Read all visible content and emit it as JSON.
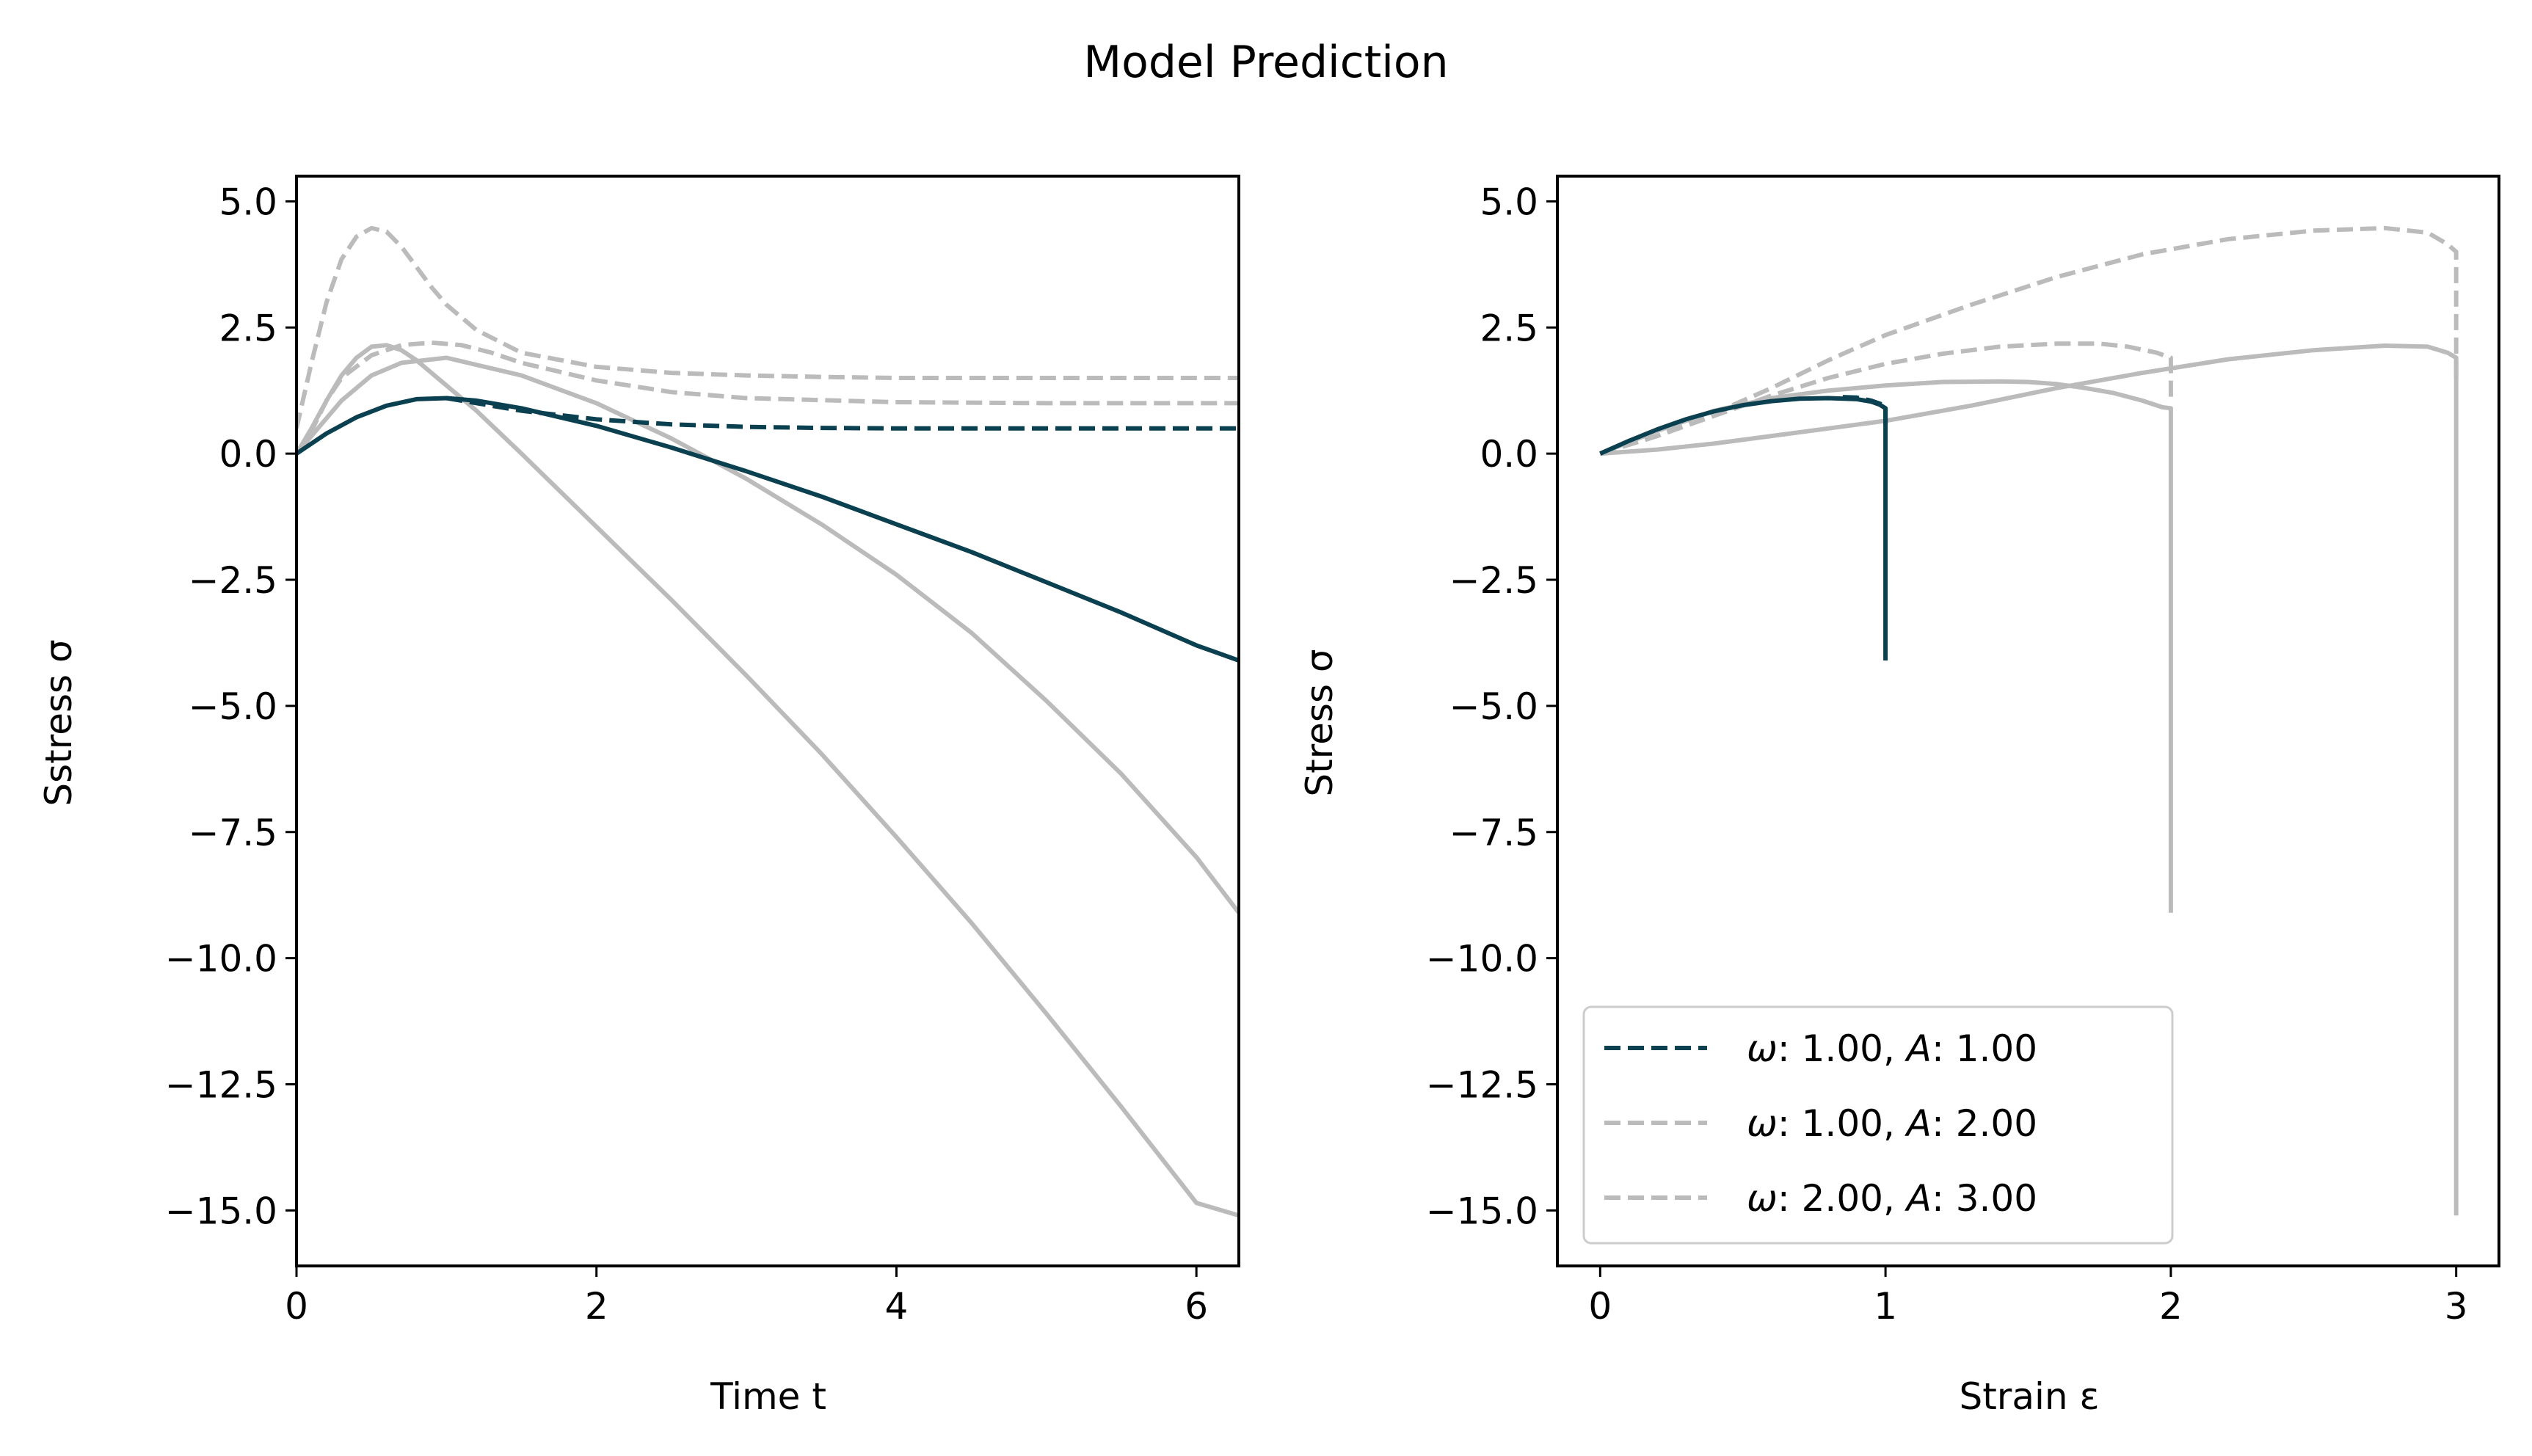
{
  "figure": {
    "title": "Model Prediction"
  },
  "colors": {
    "primary": "#0a4050",
    "secondary": "#bbbbbb",
    "legend_border": "#cccccc"
  },
  "chart_data": [
    {
      "type": "line",
      "xlabel": "Time t",
      "ylabel": "Sstress σ",
      "xlim": [
        0,
        6.283
      ],
      "ylim": [
        -16.1,
        5.5
      ],
      "xticks": [
        0,
        2,
        4,
        6
      ],
      "xtick_labels": [
        "0",
        "2",
        "4",
        "6"
      ],
      "yticks": [
        5.0,
        2.5,
        0.0,
        -2.5,
        -5.0,
        -7.5,
        -10.0,
        -12.5,
        -15.0
      ],
      "ytick_labels": [
        "5.0",
        "2.5",
        "0.0",
        "−2.5",
        "−5.0",
        "−7.5",
        "−10.0",
        "−12.5",
        "−15.0"
      ],
      "grid": false,
      "series": [
        {
          "style": "solid",
          "color": "secondary",
          "x": [
            0,
            0.1,
            0.3,
            0.5,
            0.7,
            1.0,
            1.5,
            2.0,
            2.5,
            3.0,
            3.5,
            4.0,
            4.5,
            5.0,
            5.5,
            6.0,
            6.283
          ],
          "y": [
            0,
            0.35,
            1.05,
            1.55,
            1.8,
            1.9,
            1.55,
            1.0,
            0.3,
            -0.5,
            -1.4,
            -2.4,
            -3.55,
            -4.9,
            -6.35,
            -8.0,
            -9.1
          ]
        },
        {
          "style": "solid",
          "color": "secondary",
          "x": [
            0,
            0.1,
            0.2,
            0.3,
            0.4,
            0.5,
            0.6,
            0.7,
            0.8,
            1.0,
            1.2,
            1.5,
            2.0,
            2.5,
            3.0,
            3.5,
            4.0,
            4.5,
            5.0,
            5.5,
            6.0,
            6.283
          ],
          "y": [
            0,
            0.5,
            1.05,
            1.55,
            1.9,
            2.12,
            2.15,
            2.05,
            1.85,
            1.35,
            0.85,
            0.0,
            -1.45,
            -2.9,
            -4.4,
            -5.95,
            -7.6,
            -9.3,
            -11.1,
            -12.95,
            -14.85,
            -15.1
          ]
        },
        {
          "style": "dashed",
          "color": "secondary",
          "x": [
            0,
            0.1,
            0.2,
            0.3,
            0.4,
            0.5,
            0.6,
            0.7,
            0.8,
            0.9,
            1.0,
            1.2,
            1.5,
            2.0,
            2.5,
            3.0,
            3.5,
            4.0,
            5.0,
            6.283
          ],
          "y": [
            0.5,
            1.8,
            3.0,
            3.85,
            4.3,
            4.47,
            4.4,
            4.1,
            3.7,
            3.3,
            2.95,
            2.45,
            2.0,
            1.72,
            1.6,
            1.55,
            1.52,
            1.5,
            1.5,
            1.5
          ]
        },
        {
          "style": "dashed",
          "color": "secondary",
          "x": [
            0,
            0.1,
            0.2,
            0.3,
            0.5,
            0.7,
            0.9,
            1.1,
            1.3,
            1.5,
            2.0,
            2.5,
            3.0,
            4.0,
            5.0,
            6.283
          ],
          "y": [
            0,
            0.45,
            1.05,
            1.5,
            1.95,
            2.15,
            2.2,
            2.15,
            2.0,
            1.8,
            1.45,
            1.22,
            1.1,
            1.02,
            1.0,
            1.0
          ]
        },
        {
          "style": "dashed",
          "color": "primary",
          "x": [
            1.0,
            1.5,
            2.0,
            2.5,
            3.0,
            3.5,
            4.0,
            5.0,
            6.283
          ],
          "y": [
            1.1,
            0.85,
            0.68,
            0.58,
            0.53,
            0.51,
            0.5,
            0.5,
            0.5
          ]
        },
        {
          "style": "solid",
          "color": "primary",
          "x": [
            0,
            0.2,
            0.4,
            0.6,
            0.8,
            1.0,
            1.2,
            1.5,
            2.0,
            2.5,
            3.0,
            3.5,
            4.0,
            4.5,
            5.0,
            5.5,
            6.0,
            6.283
          ],
          "y": [
            0,
            0.4,
            0.72,
            0.95,
            1.08,
            1.1,
            1.05,
            0.9,
            0.55,
            0.12,
            -0.35,
            -0.85,
            -1.4,
            -1.95,
            -2.55,
            -3.15,
            -3.8,
            -4.1
          ]
        }
      ]
    },
    {
      "type": "line",
      "xlabel": "Strain ε",
      "ylabel": "Stress σ",
      "xlim": [
        -0.15,
        3.15
      ],
      "ylim": [
        -16.1,
        5.5
      ],
      "xticks": [
        0,
        1,
        2,
        3
      ],
      "xtick_labels": [
        "0",
        "1",
        "2",
        "3"
      ],
      "yticks": [
        5.0,
        2.5,
        0.0,
        -2.5,
        -5.0,
        -7.5,
        -10.0,
        -12.5,
        -15.0
      ],
      "ytick_labels": [
        "5.0",
        "2.5",
        "0.0",
        "−2.5",
        "−5.0",
        "−7.5",
        "−10.0",
        "−12.5",
        "−15.0"
      ],
      "grid": false,
      "legend_position": "lower-left",
      "legend": [
        {
          "omega": "1.00",
          "A": "1.00",
          "style": "dashed",
          "color": "primary"
        },
        {
          "omega": "1.00",
          "A": "2.00",
          "style": "dashed",
          "color": "secondary"
        },
        {
          "omega": "2.00",
          "A": "3.00",
          "style": "dashed",
          "color": "secondary"
        }
      ],
      "series": [
        {
          "style": "solid",
          "color": "secondary",
          "x": [
            0,
            0.2,
            0.4,
            0.6,
            0.8,
            1.0,
            1.2,
            1.4,
            1.5,
            1.6,
            1.7,
            1.8,
            1.9,
            1.97,
            2.0,
            2.0
          ],
          "y": [
            0,
            0.45,
            0.85,
            1.1,
            1.25,
            1.35,
            1.42,
            1.43,
            1.42,
            1.38,
            1.3,
            1.2,
            1.05,
            0.92,
            0.9,
            -9.1
          ]
        },
        {
          "style": "solid",
          "color": "secondary",
          "x": [
            0,
            0.2,
            0.4,
            0.6,
            0.8,
            1.0,
            1.3,
            1.6,
            1.9,
            2.2,
            2.5,
            2.75,
            2.9,
            2.97,
            3.0,
            3.0
          ],
          "y": [
            0,
            0.08,
            0.2,
            0.35,
            0.5,
            0.65,
            0.95,
            1.3,
            1.6,
            1.87,
            2.05,
            2.14,
            2.12,
            2.0,
            1.9,
            -15.1
          ]
        },
        {
          "style": "dashed",
          "color": "secondary",
          "x": [
            0,
            0.2,
            0.4,
            0.6,
            0.8,
            1.0,
            1.3,
            1.6,
            1.9,
            2.2,
            2.5,
            2.75,
            2.9,
            2.97,
            3.0,
            3.0
          ],
          "y": [
            0,
            0.35,
            0.8,
            1.3,
            1.85,
            2.35,
            2.95,
            3.5,
            3.95,
            4.25,
            4.42,
            4.47,
            4.38,
            4.15,
            4.0,
            1.5
          ]
        },
        {
          "style": "dashed",
          "color": "secondary",
          "x": [
            0,
            0.2,
            0.4,
            0.6,
            0.8,
            1.0,
            1.2,
            1.4,
            1.6,
            1.75,
            1.85,
            1.95,
            2.0,
            2.0
          ],
          "y": [
            0,
            0.35,
            0.75,
            1.15,
            1.5,
            1.78,
            1.98,
            2.12,
            2.18,
            2.18,
            2.12,
            2.0,
            1.9,
            1.0
          ]
        },
        {
          "style": "dashed",
          "color": "primary",
          "x": [
            0.85,
            0.9,
            0.95,
            1.0,
            1.0
          ],
          "y": [
            1.12,
            1.11,
            1.05,
            0.95,
            0.5
          ]
        },
        {
          "style": "solid",
          "color": "primary",
          "x": [
            0,
            0.1,
            0.2,
            0.3,
            0.4,
            0.5,
            0.6,
            0.7,
            0.8,
            0.9,
            0.95,
            0.98,
            1.0,
            1.0
          ],
          "y": [
            0,
            0.25,
            0.48,
            0.68,
            0.84,
            0.96,
            1.04,
            1.09,
            1.1,
            1.08,
            1.03,
            0.97,
            0.9,
            -4.1
          ]
        }
      ]
    }
  ]
}
